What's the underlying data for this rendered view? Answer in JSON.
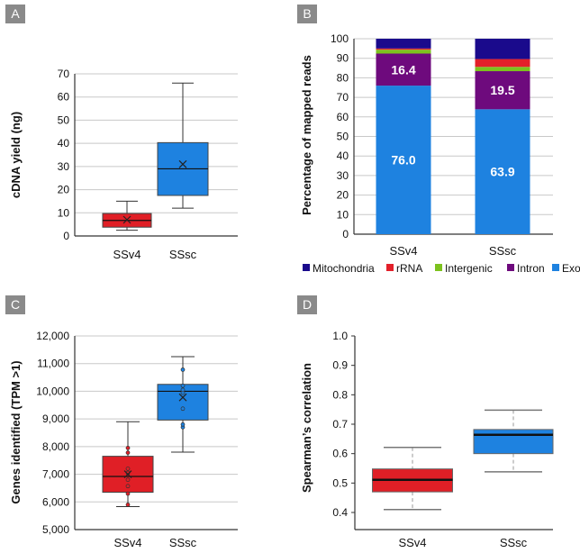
{
  "colors": {
    "ssv4": "#e01f26",
    "sssc": "#1e82e0",
    "panel_label_bg": "#8a8a8a"
  },
  "chart_data": [
    {
      "panel": "A",
      "type": "box",
      "ylabel": "cDNA yield (ng)",
      "ylim": [
        0,
        70
      ],
      "yticks": [
        "0",
        "10",
        "20",
        "30",
        "40",
        "50",
        "60",
        "70"
      ],
      "grid": true,
      "categories": [
        "SSv4",
        "SSsc"
      ],
      "boxes": [
        {
          "name": "SSv4",
          "min": 2.5,
          "q1": 3.8,
          "median": 6.7,
          "q3": 9.7,
          "max": 15,
          "mean": 7
        },
        {
          "name": "SSsc",
          "min": 12,
          "q1": 17.5,
          "median": 29,
          "q3": 40.3,
          "max": 66,
          "mean": 31
        }
      ]
    },
    {
      "panel": "B",
      "type": "bar",
      "stacked": true,
      "ylabel": "Percentage of mapped reads",
      "ylim": [
        0,
        100
      ],
      "yticks": [
        "0",
        "10",
        "20",
        "30",
        "40",
        "50",
        "60",
        "70",
        "80",
        "90",
        "100"
      ],
      "grid": true,
      "categories": [
        "SSv4",
        "SSsc"
      ],
      "legend_position": "bottom",
      "series": [
        {
          "name": "Exon",
          "color": "#1e82e0",
          "values": [
            76.0,
            63.9
          ],
          "labels": [
            "76.0",
            "63.9"
          ]
        },
        {
          "name": "Intron",
          "color": "#6e0a7d",
          "values": [
            16.4,
            19.5
          ],
          "labels": [
            "16.4",
            "19.5"
          ]
        },
        {
          "name": "Intergenic",
          "color": "#7dc21e",
          "values": [
            2.0,
            2.2
          ]
        },
        {
          "name": "rRNA",
          "color": "#e3202a",
          "values": [
            0.6,
            4.0
          ]
        },
        {
          "name": "Mitochondria",
          "color": "#1a0a8c",
          "values": [
            5.0,
            10.4
          ]
        }
      ],
      "legend_order": [
        "Mitochondria",
        "rRNA",
        "Intergenic",
        "Intron",
        "Exon"
      ]
    },
    {
      "panel": "C",
      "type": "box",
      "ylabel": "Genes identified (TPM >1)",
      "ylim": [
        5000,
        12000
      ],
      "yticks": [
        "5,000",
        "6,000",
        "7,000",
        "8,000",
        "9,000",
        "10,000",
        "11,000",
        "12,000"
      ],
      "grid": true,
      "categories": [
        "SSv4",
        "SSsc"
      ],
      "boxes": [
        {
          "name": "SSv4",
          "min": 5830,
          "q1": 6350,
          "median": 6920,
          "q3": 7650,
          "max": 8900,
          "mean": 7000,
          "points": [
            5900,
            6300,
            6570,
            6800,
            7050,
            7200,
            7780,
            7950
          ]
        },
        {
          "name": "SSsc",
          "min": 7800,
          "q1": 8960,
          "median": 10000,
          "q3": 10250,
          "max": 11250,
          "mean": 9780,
          "points": [
            8700,
            8800,
            9370,
            9950,
            10050,
            10200,
            10780
          ]
        }
      ]
    },
    {
      "panel": "D",
      "type": "box",
      "ylabel": "Spearman’s correlation",
      "ylim": [
        0.4,
        1.0
      ],
      "yticks": [
        "0.4",
        "0.5",
        "0.6",
        "0.7",
        "0.8",
        "0.9",
        "1.0"
      ],
      "grid": false,
      "categories": [
        "SSv4",
        "SSsc"
      ],
      "boxes": [
        {
          "name": "SSv4",
          "min": 0.41,
          "q1": 0.47,
          "median": 0.511,
          "q3": 0.548,
          "max": 0.621
        },
        {
          "name": "SSsc",
          "min": 0.538,
          "q1": 0.6,
          "median": 0.664,
          "q3": 0.682,
          "max": 0.748
        }
      ]
    }
  ]
}
